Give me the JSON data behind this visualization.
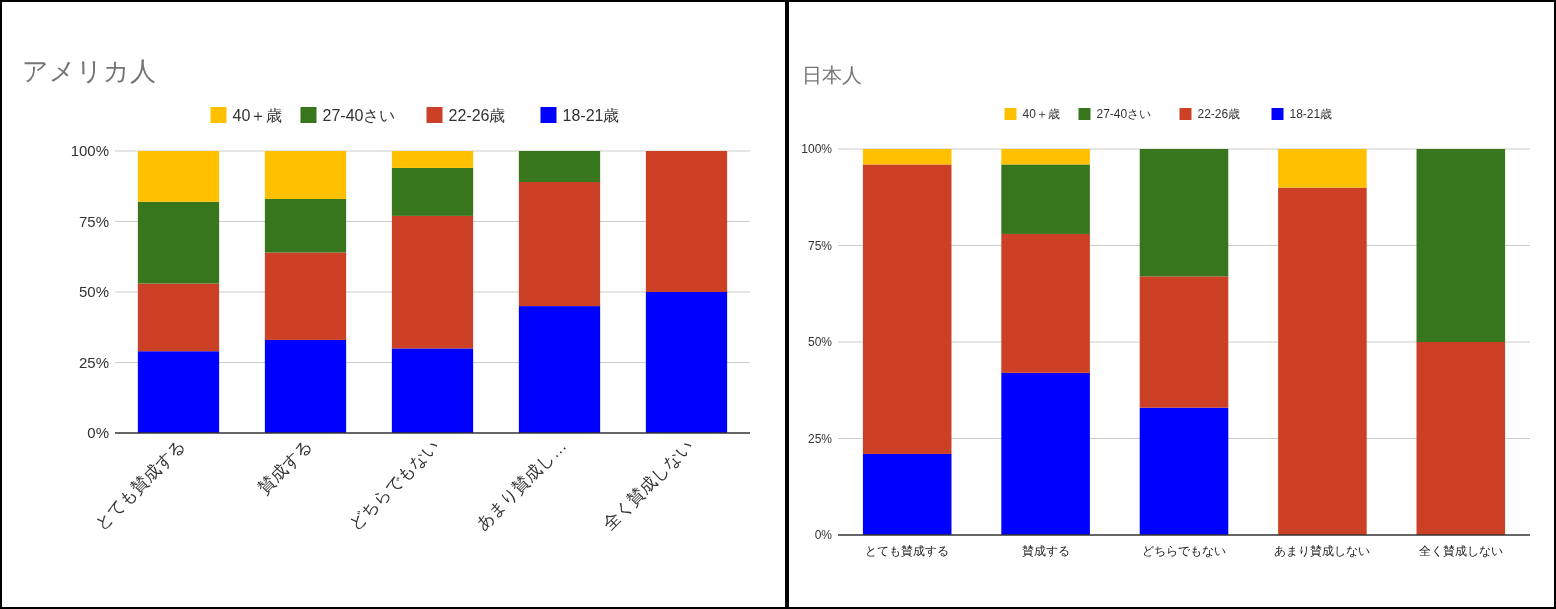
{
  "chart_data": [
    {
      "type": "bar",
      "stacked": true,
      "title": "アメリカ人",
      "legend": "top",
      "grid": "y",
      "categories": [
        "とても賛成する",
        "賛成する",
        "どちらでもない",
        "あまり賛成し…",
        "全く賛成しない"
      ],
      "ylim": [
        0,
        100
      ],
      "yticks": [
        {
          "value": 0,
          "label": "0%"
        },
        {
          "value": 25,
          "label": "25%"
        },
        {
          "value": 50,
          "label": "50%"
        },
        {
          "value": 75,
          "label": "75%"
        },
        {
          "value": 100,
          "label": "100%"
        }
      ],
      "series": [
        {
          "name": "18-21歳",
          "color": "#0000ff",
          "values": [
            29,
            33,
            30,
            45,
            50
          ]
        },
        {
          "name": "22-26歳",
          "color": "#cc4125",
          "values": [
            24,
            31,
            47,
            44,
            50
          ]
        },
        {
          "name": "27-40さい",
          "color": "#38761d",
          "values": [
            29,
            19,
            17,
            11,
            0
          ]
        },
        {
          "name": "40＋歳",
          "color": "#ffc000",
          "values": [
            18,
            17,
            6,
            0,
            0
          ]
        }
      ]
    },
    {
      "type": "bar",
      "stacked": true,
      "title": "日本人",
      "legend": "top",
      "grid": "y",
      "categories": [
        "とても賛成する",
        "賛成する",
        "どちらでもない",
        "あまり賛成しない",
        "全く賛成しない"
      ],
      "ylim": [
        0,
        100
      ],
      "yticks": [
        {
          "value": 0,
          "label": "0%"
        },
        {
          "value": 25,
          "label": "25%"
        },
        {
          "value": 50,
          "label": "50%"
        },
        {
          "value": 75,
          "label": "75%"
        },
        {
          "value": 100,
          "label": "100%"
        }
      ],
      "series": [
        {
          "name": "18-21歳",
          "color": "#0000ff",
          "values": [
            21,
            42,
            33,
            0,
            0
          ]
        },
        {
          "name": "22-26歳",
          "color": "#cc4125",
          "values": [
            75,
            36,
            34,
            90,
            50
          ]
        },
        {
          "name": "27-40さい",
          "color": "#38761d",
          "values": [
            0,
            18,
            33,
            0,
            50
          ]
        },
        {
          "name": "40＋歳",
          "color": "#ffc000",
          "values": [
            4,
            4,
            0,
            10,
            0
          ]
        }
      ]
    }
  ]
}
